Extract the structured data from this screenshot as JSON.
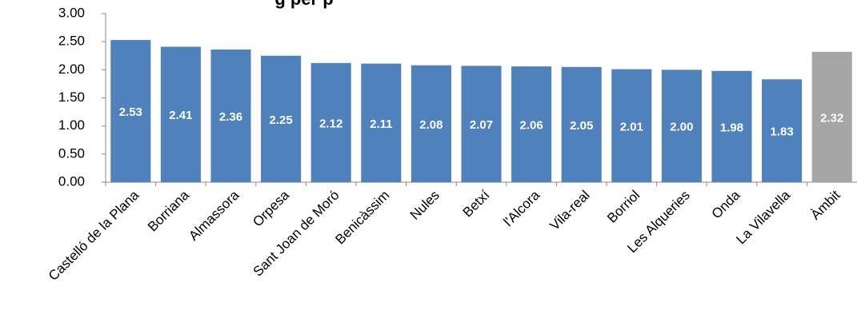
{
  "chart_data": {
    "type": "bar",
    "title": "g per p",
    "categories": [
      "Castelló de la Plana",
      "Borriana",
      "Almassora",
      "Orpesa",
      "Sant Joan de Moró",
      "Benicàssim",
      "Nules",
      "Betxí",
      "l'Alcora",
      "Vila-real",
      "Borriol",
      "Les Alqueries",
      "Onda",
      "La Vilavella",
      "Àmbit"
    ],
    "values": [
      2.53,
      2.41,
      2.36,
      2.25,
      2.12,
      2.11,
      2.08,
      2.07,
      2.06,
      2.05,
      2.01,
      2.0,
      1.98,
      1.83,
      2.32
    ],
    "value_labels": [
      "2.53",
      "2.41",
      "2.36",
      "2.25",
      "2.12",
      "2.11",
      "2.08",
      "2.07",
      "2.06",
      "2.05",
      "2.01",
      "2.00",
      "1.98",
      "1.83",
      "2.32"
    ],
    "colors": [
      "#4f81bd",
      "#4f81bd",
      "#4f81bd",
      "#4f81bd",
      "#4f81bd",
      "#4f81bd",
      "#4f81bd",
      "#4f81bd",
      "#4f81bd",
      "#4f81bd",
      "#4f81bd",
      "#4f81bd",
      "#4f81bd",
      "#4f81bd",
      "#a5a5a5"
    ],
    "ylim": [
      0,
      3
    ],
    "yticks": [
      {
        "value": 0,
        "label": "0.00"
      },
      {
        "value": 0.5,
        "label": "0.50"
      },
      {
        "value": 1,
        "label": "1.00"
      },
      {
        "value": 1.5,
        "label": "1.50"
      },
      {
        "value": 2,
        "label": "2.00"
      },
      {
        "value": 2.5,
        "label": "2.50"
      },
      {
        "value": 3,
        "label": "3.00"
      }
    ],
    "grid": false
  }
}
